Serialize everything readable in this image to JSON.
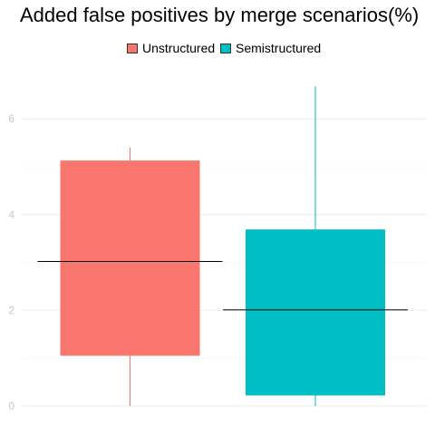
{
  "chart_data": {
    "type": "boxplot",
    "title": "Added false positives by merge scenarios(%)",
    "xlabel": "",
    "ylabel": "",
    "ylim": [
      0,
      6.9
    ],
    "yticks": [
      0,
      2,
      4,
      6
    ],
    "grid": true,
    "legend_placement": "top-center",
    "series": [
      {
        "name": "Unstructured",
        "color": "#F8766D",
        "min": 0,
        "q1": 1.05,
        "median": 3.02,
        "q3": 5.13,
        "max": 5.4
      },
      {
        "name": "Semistructured",
        "color": "#00BFC4",
        "min": 0,
        "q1": 0.22,
        "median": 2.01,
        "q3": 3.69,
        "max": 6.68
      }
    ]
  }
}
